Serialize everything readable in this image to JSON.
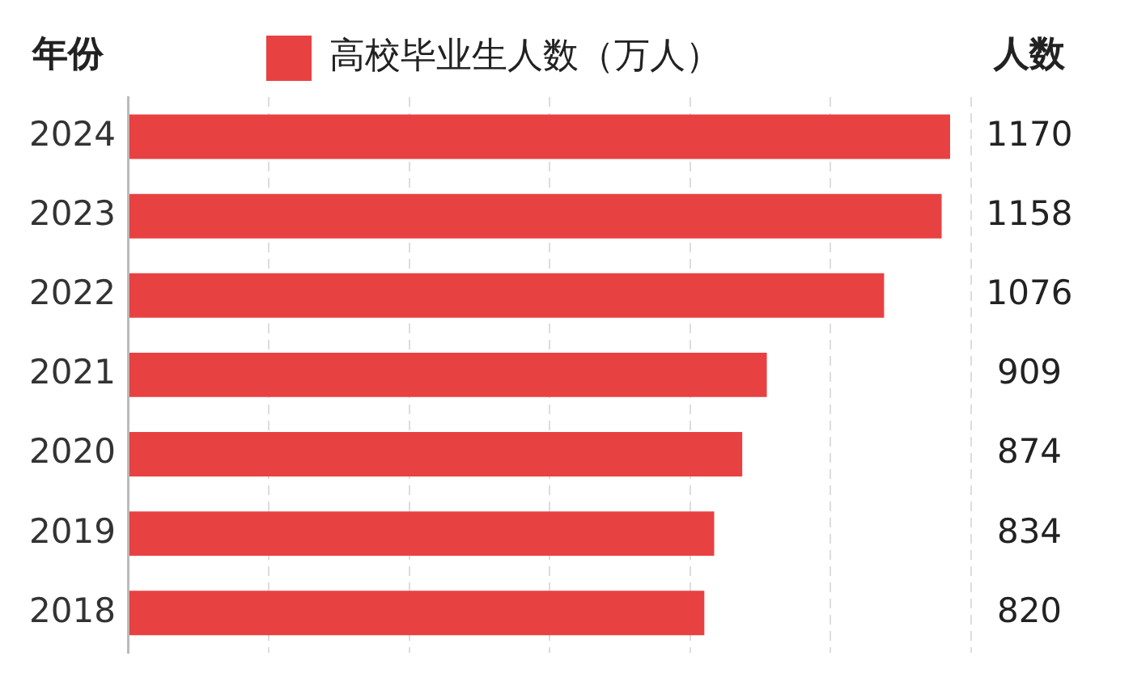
{
  "chart_data": {
    "type": "bar",
    "orientation": "horizontal",
    "ylabel": "年份",
    "annotations": [
      "人数"
    ],
    "categories": [
      "2024",
      "2023",
      "2022",
      "2021",
      "2020",
      "2019",
      "2018"
    ],
    "series": [
      {
        "name": "高校毕业生人数（万人）",
        "color": "#e84142",
        "values": [
          1170,
          1158,
          1076,
          909,
          874,
          834,
          820
        ]
      }
    ],
    "grid": "x",
    "legend": "top",
    "data_labels": true,
    "tick_labels": "y"
  }
}
